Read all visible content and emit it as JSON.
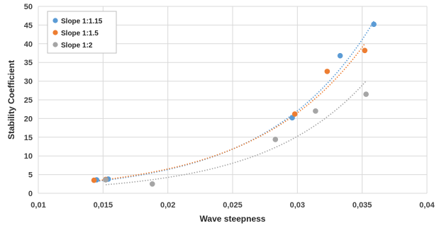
{
  "chart_data": {
    "type": "scatter",
    "title": "",
    "xlabel": "Wave steepness",
    "ylabel": "Stability Coefficient",
    "xlim": [
      0.01,
      0.04
    ],
    "ylim": [
      0,
      50
    ],
    "x_ticks": [
      "0,01",
      "0,015",
      "0,02",
      "0,025",
      "0,03",
      "0,035",
      "0,04"
    ],
    "y_ticks": [
      "0",
      "5",
      "10",
      "15",
      "20",
      "25",
      "30",
      "35",
      "40",
      "45",
      "50"
    ],
    "grid": true,
    "legend_position": "top-left",
    "trendline": "exponential, dotted, one per series",
    "series": [
      {
        "name": "Slope 1:1.15",
        "color": "#5B9BD5",
        "points": [
          [
            0.0145,
            3.6
          ],
          [
            0.0154,
            3.8
          ],
          [
            0.0296,
            20.2
          ],
          [
            0.0333,
            36.8
          ],
          [
            0.0359,
            45.2
          ]
        ],
        "trend": [
          [
            0.0145,
            3.2
          ],
          [
            0.0359,
            46
          ]
        ]
      },
      {
        "name": "Slope 1:1.5",
        "color": "#ED7D31",
        "points": [
          [
            0.0143,
            3.5
          ],
          [
            0.0152,
            3.7
          ],
          [
            0.0298,
            21.2
          ],
          [
            0.0323,
            32.6
          ],
          [
            0.0352,
            38.2
          ]
        ],
        "trend": [
          [
            0.0143,
            3.3
          ],
          [
            0.0352,
            40
          ]
        ]
      },
      {
        "name": "Slope 1:2",
        "color": "#A5A5A5",
        "points": [
          [
            0.0152,
            3.6
          ],
          [
            0.0188,
            2.5
          ],
          [
            0.0283,
            14.4
          ],
          [
            0.0314,
            22.0
          ],
          [
            0.0353,
            26.5
          ]
        ],
        "trend": [
          [
            0.0152,
            2.3
          ],
          [
            0.0353,
            30
          ]
        ]
      }
    ]
  }
}
